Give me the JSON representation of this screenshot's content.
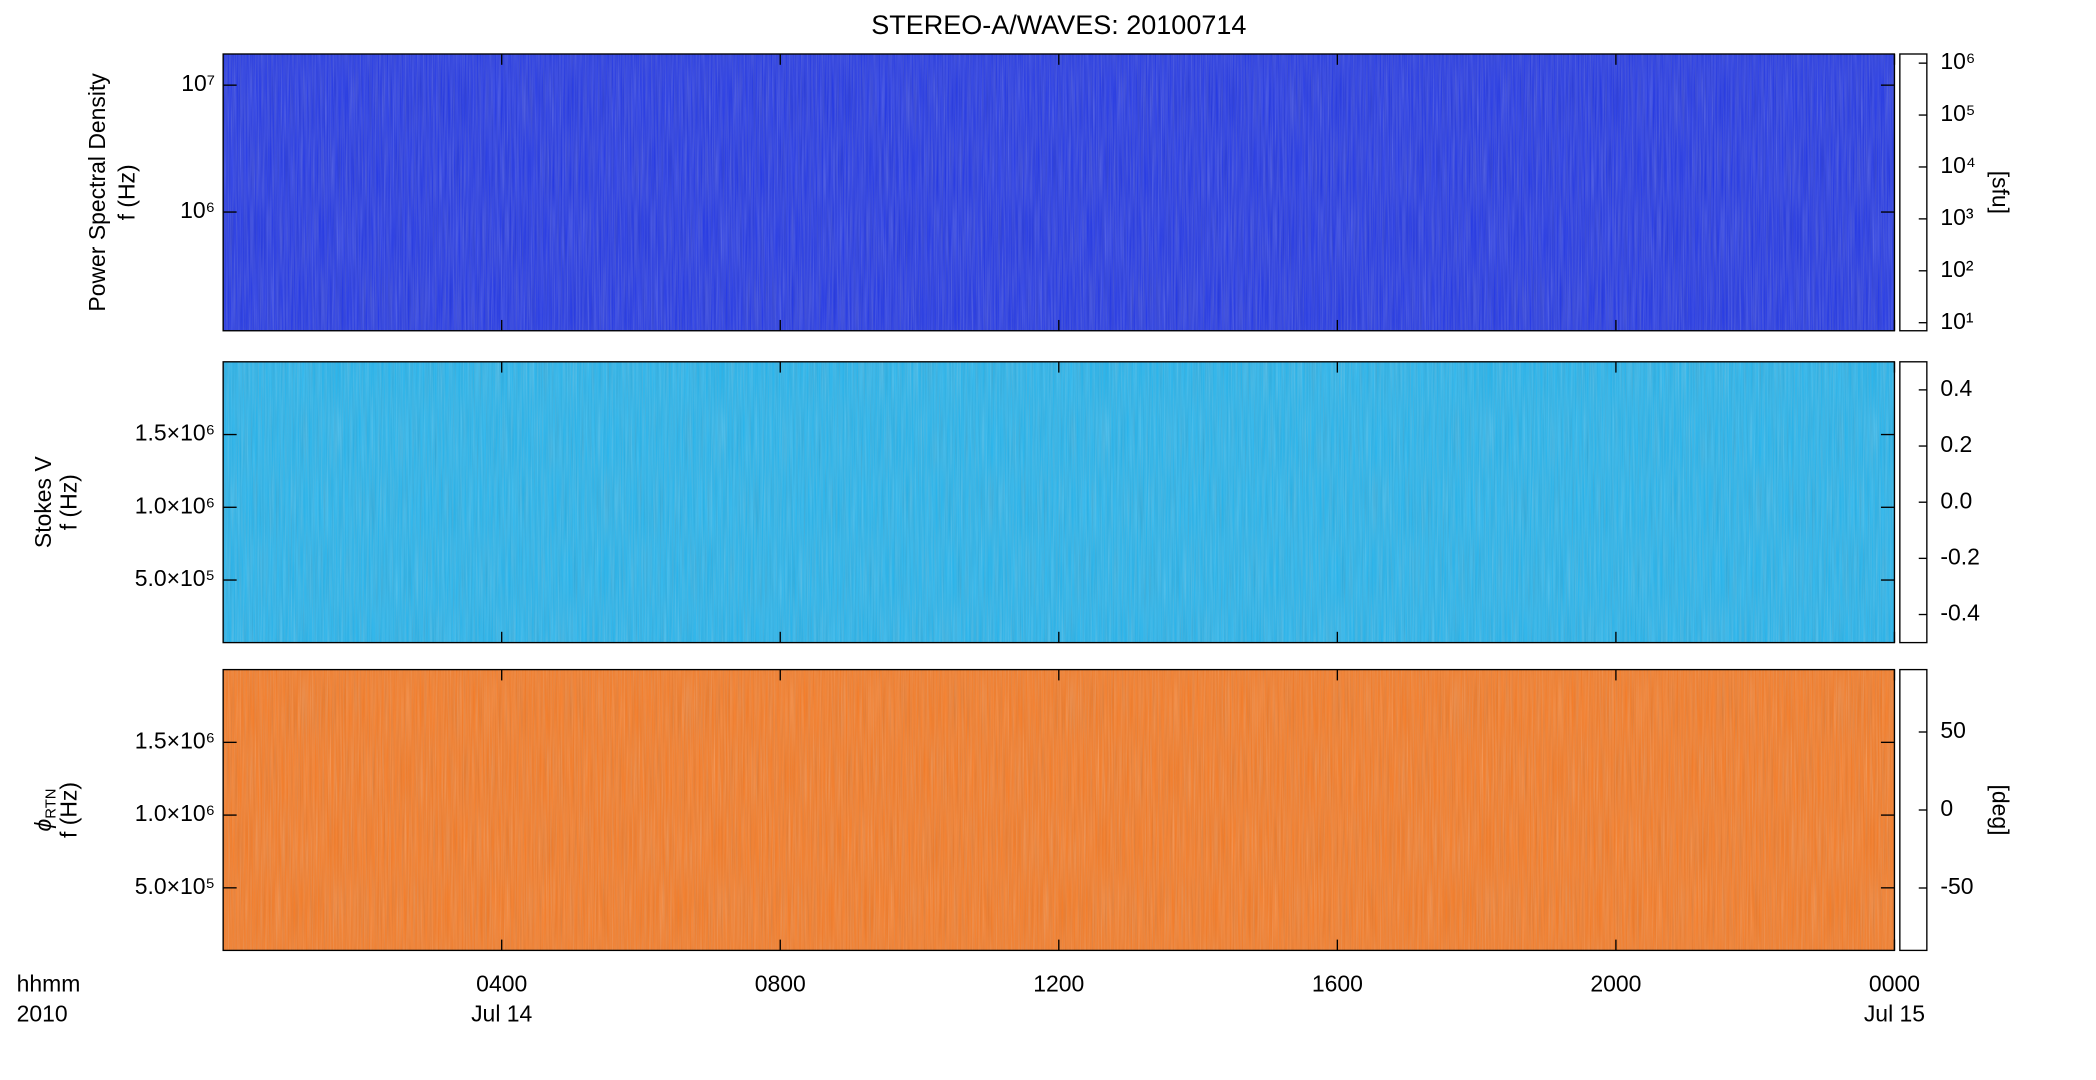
{
  "chart_data": [
    {
      "type": "spectrogram",
      "title": "STEREO-A/WAVES: 20100714",
      "ylabel": "Power Spectral Density",
      "ylabel2": "f (Hz)",
      "yscale": "log",
      "ylim": [
        116000,
        17600000
      ],
      "yticks": [
        {
          "value": 1000000,
          "label": "10⁶"
        },
        {
          "value": 10000000,
          "label": "10⁷"
        }
      ],
      "color": "#1f34e6",
      "colorbar": {
        "scale": "log",
        "lim": [
          7,
          1500000
        ],
        "label": "[sfu]",
        "ticks": [
          {
            "value": 10,
            "label": "10¹"
          },
          {
            "value": 100,
            "label": "10²"
          },
          {
            "value": 1000,
            "label": "10³"
          },
          {
            "value": 10000,
            "label": "10⁴"
          },
          {
            "value": 100000,
            "label": "10⁵"
          },
          {
            "value": 1000000,
            "label": "10⁶"
          }
        ],
        "colors": [
          "#000000",
          "#5a00a8",
          "#0000ff",
          "#00b8ff",
          "#00ff90",
          "#ffff00",
          "#ff8000",
          "#ff0000"
        ]
      }
    },
    {
      "type": "spectrogram",
      "ylabel": "Stokes V",
      "ylabel2": "f (Hz)",
      "yscale": "linear",
      "ylim": [
        70000,
        2000000
      ],
      "yticks": [
        {
          "value": 500000,
          "label": "5.0×10⁵"
        },
        {
          "value": 1000000,
          "label": "1.0×10⁶"
        },
        {
          "value": 1500000,
          "label": "1.5×10⁶"
        }
      ],
      "color": "#22b4ee",
      "colorbar": {
        "scale": "linear",
        "lim": [
          -0.5,
          0.5
        ],
        "ticks": [
          {
            "value": -0.4,
            "label": "-0.4"
          },
          {
            "value": -0.2,
            "label": "-0.2"
          },
          {
            "value": 0,
            "label": "0.0"
          },
          {
            "value": 0.2,
            "label": "0.2"
          },
          {
            "value": 0.4,
            "label": "0.4"
          }
        ],
        "colors": [
          "#000000",
          "#5a00a8",
          "#0000ff",
          "#00b8ff",
          "#00ff90",
          "#ffff00",
          "#ff8000",
          "#ff0000"
        ]
      }
    },
    {
      "type": "spectrogram",
      "ylabel": "ϕ",
      "ylabel_sub": "RTN",
      "ylabel2": "f (Hz)",
      "yscale": "linear",
      "ylim": [
        70000,
        2000000
      ],
      "yticks": [
        {
          "value": 500000,
          "label": "5.0×10⁵"
        },
        {
          "value": 1000000,
          "label": "1.0×10⁶"
        },
        {
          "value": 1500000,
          "label": "1.5×10⁶"
        }
      ],
      "color": "#f77a22",
      "colorbar": {
        "scale": "linear",
        "lim": [
          -90,
          90
        ],
        "label": "[deg]",
        "ticks": [
          -50,
          0,
          50
        ],
        "colors": [
          "#000000",
          "#5a00a8",
          "#0000ff",
          "#00b8ff",
          "#00ff90",
          "#ffff00",
          "#ff8000",
          "#ff0000"
        ]
      },
      "xlabel": "hhmm",
      "xlabel2": "2010",
      "xlim": [
        0,
        24
      ],
      "xticks": [
        {
          "value": 4,
          "label": "0400"
        },
        {
          "value": 8,
          "label": "0800"
        },
        {
          "value": 12,
          "label": "1200"
        },
        {
          "value": 16,
          "label": "1600"
        },
        {
          "value": 20,
          "label": "2000"
        },
        {
          "value": 24,
          "label": "0000"
        }
      ],
      "xdates": [
        {
          "value": 4,
          "label": "Jul 14"
        },
        {
          "value": 24,
          "label": "Jul 15"
        }
      ]
    }
  ]
}
